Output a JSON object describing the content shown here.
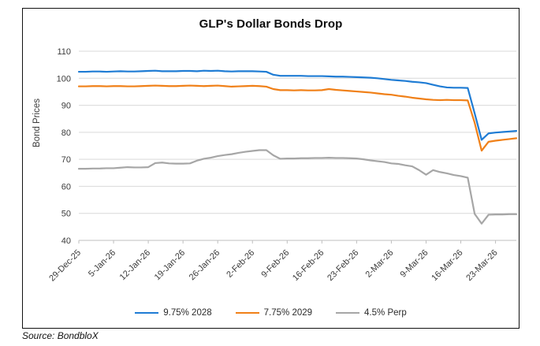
{
  "title": "GLP's Dollar Bonds Drop",
  "source_note": "Source: BondbloX",
  "chart_data": {
    "type": "line",
    "title": "GLP's Dollar Bonds Drop",
    "xlabel": "",
    "ylabel": "Bond Prices",
    "ylim": [
      40,
      110
    ],
    "ytick_interval": 10,
    "grid": true,
    "legend_position": "bottom",
    "colors": {
      "gridline": "#d9d9d9",
      "axis": "#bfbfbf",
      "tick_text": "#3b3b3b"
    },
    "x_tick_labels": [
      "29-Dec-25",
      "5-Jan-26",
      "12-Jan-26",
      "19-Jan-26",
      "26-Jan-26",
      "2-Feb-26",
      "9-Feb-26",
      "16-Feb-26",
      "23-Feb-26",
      "2-Mar-26",
      "9-Mar-26",
      "16-Mar-26",
      "23-Mar-26"
    ],
    "x_tick_point_indices": [
      0,
      5,
      10,
      15,
      20,
      25,
      30,
      35,
      40,
      45,
      50,
      55,
      60
    ],
    "n_points": 64,
    "series": [
      {
        "name": "9.75% 2028",
        "color": "#1f7cd4",
        "values": [
          102.4,
          102.4,
          102.5,
          102.5,
          102.4,
          102.5,
          102.6,
          102.5,
          102.5,
          102.6,
          102.7,
          102.8,
          102.6,
          102.6,
          102.6,
          102.7,
          102.7,
          102.6,
          102.8,
          102.7,
          102.8,
          102.6,
          102.5,
          102.6,
          102.6,
          102.6,
          102.5,
          102.4,
          101.3,
          100.9,
          100.9,
          100.9,
          100.9,
          100.8,
          100.8,
          100.8,
          100.7,
          100.6,
          100.6,
          100.5,
          100.4,
          100.3,
          100.2,
          100.0,
          99.7,
          99.4,
          99.2,
          99.0,
          98.7,
          98.5,
          98.2,
          97.6,
          97.0,
          96.6,
          96.5,
          96.5,
          96.4,
          87.0,
          77.2,
          79.6,
          79.9,
          80.1,
          80.3,
          80.5
        ]
      },
      {
        "name": "7.75% 2029",
        "color": "#f08018",
        "values": [
          97.0,
          97.0,
          97.1,
          97.1,
          97.0,
          97.1,
          97.1,
          97.0,
          97.0,
          97.1,
          97.2,
          97.3,
          97.2,
          97.1,
          97.1,
          97.2,
          97.3,
          97.2,
          97.1,
          97.2,
          97.3,
          97.1,
          96.9,
          97.0,
          97.1,
          97.2,
          97.1,
          96.9,
          96.0,
          95.6,
          95.6,
          95.5,
          95.6,
          95.5,
          95.5,
          95.6,
          96.0,
          95.7,
          95.5,
          95.3,
          95.1,
          94.9,
          94.7,
          94.4,
          94.1,
          93.9,
          93.5,
          93.2,
          92.8,
          92.5,
          92.2,
          92.0,
          91.9,
          92.0,
          91.9,
          91.9,
          91.8,
          83.5,
          73.2,
          76.5,
          76.9,
          77.2,
          77.5,
          77.8
        ]
      },
      {
        "name": "4.5% Perp",
        "color": "#a6a6a6",
        "values": [
          66.5,
          66.5,
          66.6,
          66.6,
          66.7,
          66.7,
          66.9,
          67.1,
          67.0,
          67.0,
          67.1,
          68.6,
          68.8,
          68.5,
          68.4,
          68.4,
          68.5,
          69.5,
          70.2,
          70.6,
          71.2,
          71.6,
          71.9,
          72.4,
          72.8,
          73.1,
          73.4,
          73.4,
          71.5,
          70.2,
          70.3,
          70.3,
          70.4,
          70.4,
          70.5,
          70.5,
          70.6,
          70.5,
          70.5,
          70.4,
          70.3,
          70.0,
          69.6,
          69.3,
          69.0,
          68.5,
          68.3,
          67.8,
          67.4,
          66.0,
          64.3,
          66.0,
          65.3,
          64.8,
          64.2,
          63.8,
          63.2,
          49.8,
          46.2,
          49.5,
          49.6,
          49.6,
          49.7,
          49.7
        ]
      }
    ]
  }
}
